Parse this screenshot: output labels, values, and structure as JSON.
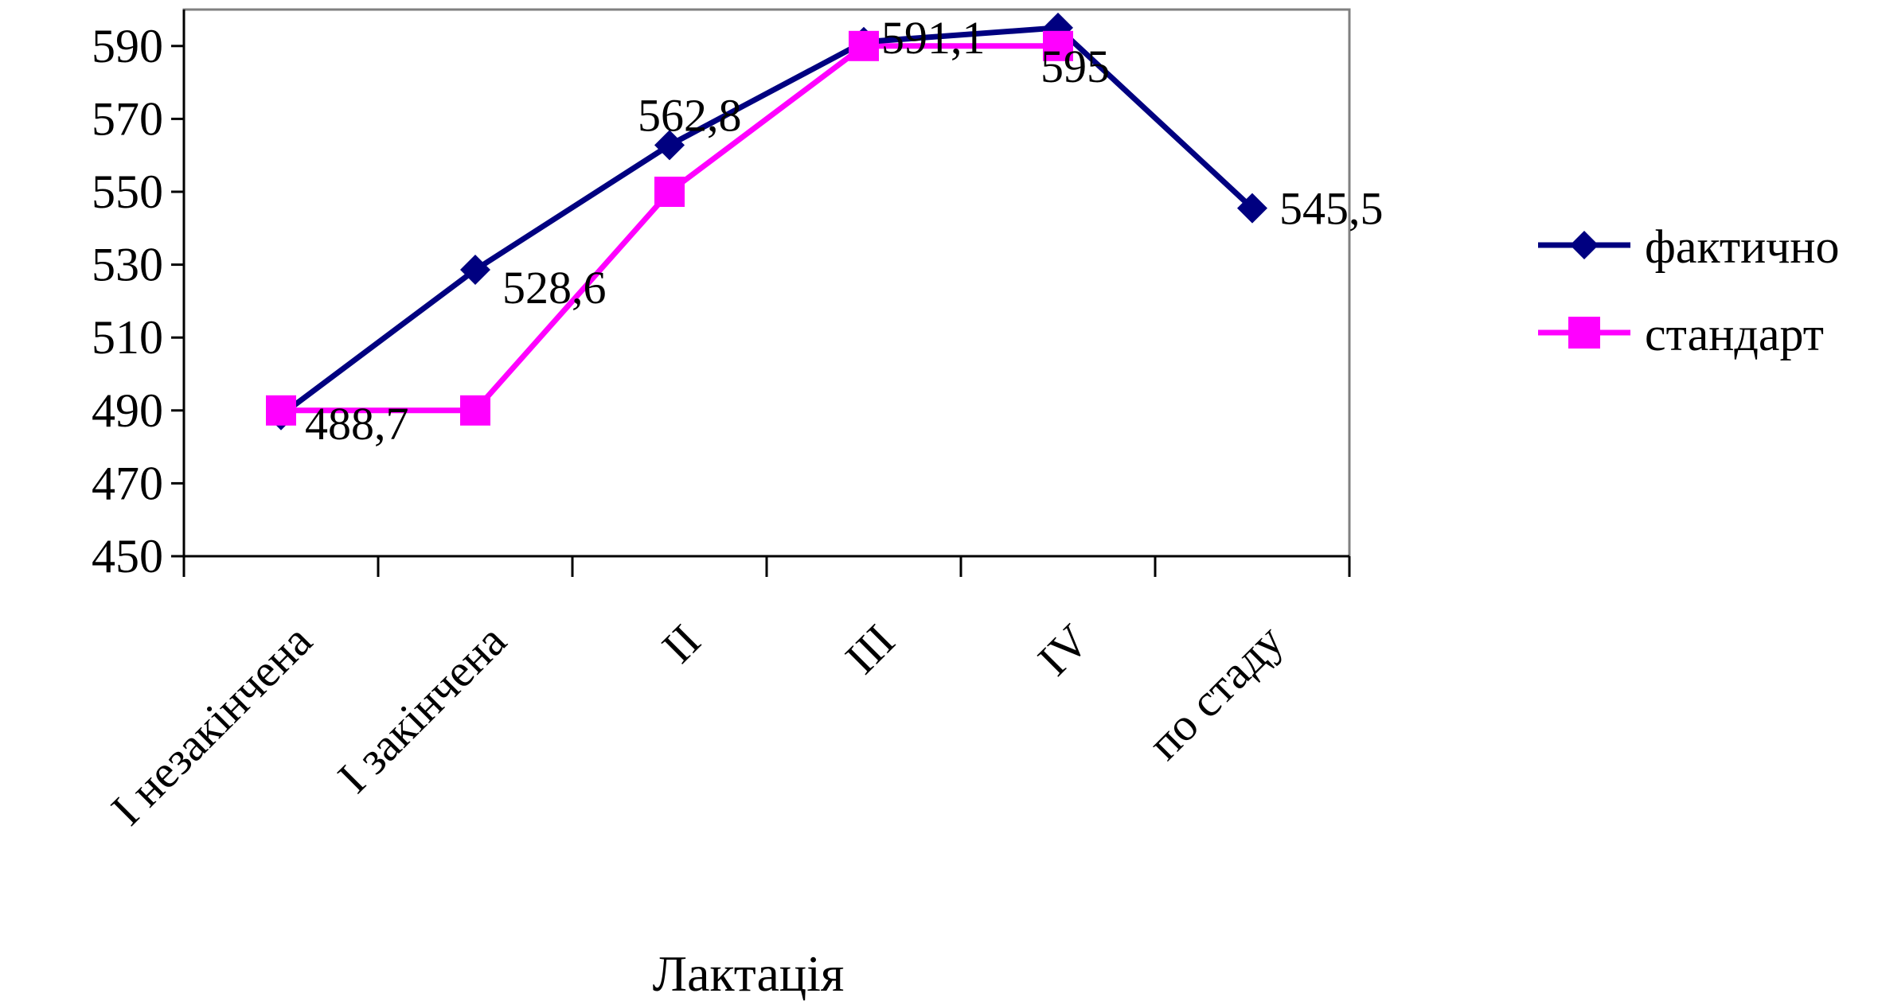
{
  "chart_data": {
    "type": "line",
    "title": "",
    "xlabel": "Лактація",
    "ylabel": "",
    "ylim": [
      450,
      600
    ],
    "yticks": [
      450,
      470,
      490,
      510,
      530,
      550,
      570,
      590
    ],
    "categories": [
      "I незакінчена",
      "I закінчена",
      "II",
      "III",
      "IV",
      "по стаду"
    ],
    "series": [
      {
        "name": "фактично",
        "color": "#000080",
        "marker": "diamond",
        "values": [
          488.7,
          528.6,
          562.8,
          591.1,
          595.0,
          545.5
        ],
        "labels": [
          "488,7",
          "528,6",
          "562,8",
          "591,1",
          "595",
          "545,5"
        ]
      },
      {
        "name": "стандарт",
        "color": "#FF00FF",
        "marker": "square",
        "values": [
          490,
          490,
          550,
          590,
          590,
          null
        ],
        "labels": []
      }
    ],
    "grid": false,
    "legend_position": "right"
  }
}
